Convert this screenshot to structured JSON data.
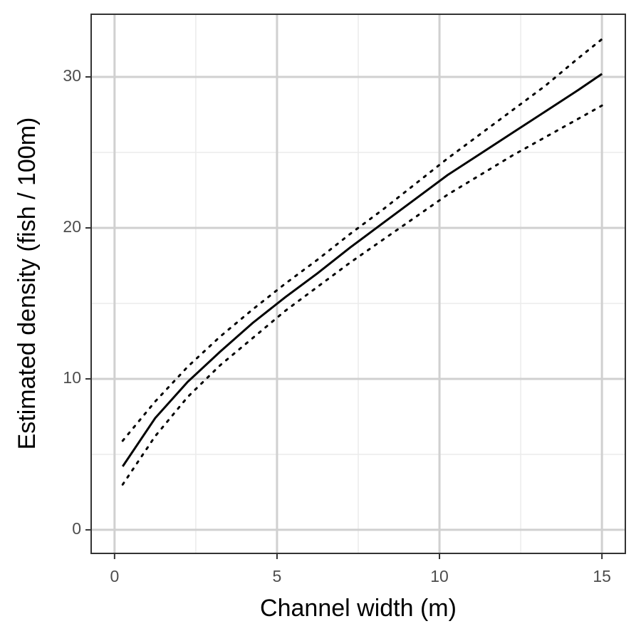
{
  "chart_data": {
    "type": "line",
    "xlabel": "Channel width (m)",
    "ylabel": "Estimated density (fish / 100m)",
    "x": [
      0.25,
      1.25,
      2.25,
      3.25,
      4.25,
      5.25,
      6.25,
      7.25,
      8.25,
      9.25,
      10.25,
      11.25,
      12.25,
      13.25,
      14.25,
      15
    ],
    "series": [
      {
        "style": "solid",
        "color": "#000000",
        "values": [
          4.2,
          7.4,
          9.8,
          11.8,
          13.7,
          15.4,
          17.0,
          18.7,
          20.3,
          21.9,
          23.5,
          24.9,
          26.3,
          27.7,
          29.1,
          30.2
        ]
      },
      {
        "style": "dotted",
        "color": "#000000",
        "values": [
          5.9,
          8.5,
          10.8,
          12.8,
          14.6,
          16.3,
          17.9,
          19.6,
          21.2,
          22.9,
          24.6,
          26.2,
          27.8,
          29.4,
          31.2,
          32.5
        ]
      },
      {
        "style": "dotted",
        "color": "#000000",
        "values": [
          3.0,
          6.2,
          8.8,
          10.9,
          12.7,
          14.5,
          16.1,
          17.7,
          19.2,
          20.7,
          22.2,
          23.5,
          24.8,
          26.0,
          27.2,
          28.1
        ]
      }
    ],
    "xlim": [
      -0.72,
      15.72
    ],
    "ylim": [
      -1.56,
      34.15
    ],
    "xticks": [
      0,
      5,
      10,
      15
    ],
    "yticks": [
      0,
      10,
      20,
      30
    ],
    "xminor": [
      2.5,
      7.5,
      12.5
    ],
    "yminor": [
      5,
      15,
      25
    ],
    "grid": true
  }
}
